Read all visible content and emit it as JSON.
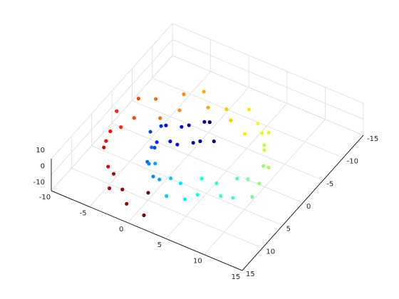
{
  "chart_data": {
    "type": "scatter3",
    "colormap": "jet",
    "grid": true,
    "xlim": [
      -10,
      15
    ],
    "ylim": [
      -15,
      15
    ],
    "zlim": [
      -10,
      10
    ],
    "xticks": [
      -10,
      -5,
      0,
      5,
      10,
      15
    ],
    "yticks": [
      -15,
      -10,
      -5,
      0,
      5,
      10,
      15
    ],
    "zticks": [
      -10,
      0,
      10
    ],
    "x": [
      1.7,
      0.5,
      -0.7,
      -1.8,
      -2.6,
      -3.0,
      -3.0,
      -2.5,
      -1.5,
      -0.1,
      1.7,
      3.6,
      5.5,
      7.3,
      8.6,
      9.4,
      9.6,
      9.0,
      7.8,
      6.0,
      3.7,
      1.1,
      -1.6,
      -4.1,
      -6.1,
      -7.5,
      -8.1,
      -7.8,
      -6.5,
      -4.4,
      -1.7,
      1.6,
      2.1,
      0.9,
      -0.3,
      -1.4,
      -2.2,
      -2.6,
      -2.6,
      -2.1,
      -1.1,
      0.3,
      2.1,
      4.0,
      5.9,
      7.7,
      9.0,
      9.8,
      10.0,
      9.4,
      8.2,
      6.4,
      4.1,
      1.5,
      -1.2,
      -3.7,
      -5.7,
      -7.1,
      -7.7,
      -7.4,
      -6.1,
      -4.0,
      -1.3,
      2.0
    ],
    "y": [
      -2.1,
      -2.0,
      -1.5,
      -0.7,
      0.6,
      2.1,
      3.7,
      5.4,
      6.9,
      8.0,
      8.6,
      8.7,
      8.1,
      6.8,
      5.2,
      3.0,
      0.6,
      -1.8,
      -4.1,
      -5.9,
      -7.0,
      -7.4,
      -6.9,
      -5.6,
      -3.5,
      -0.8,
      2.4,
      5.6,
      8.6,
      11.2,
      13.1,
      14.0,
      -2.4,
      -2.3,
      -1.8,
      -1.0,
      0.3,
      1.8,
      3.4,
      5.1,
      6.6,
      7.7,
      8.3,
      8.4,
      7.8,
      6.5,
      4.9,
      2.7,
      0.3,
      -2.1,
      -4.4,
      -6.2,
      -7.3,
      -7.7,
      -7.2,
      -5.9,
      -3.8,
      -1.1,
      2.1,
      5.3,
      8.3,
      10.9,
      12.8,
      13.7
    ],
    "z": [
      8,
      -6,
      3,
      -9,
      5,
      -2,
      9,
      -4,
      1,
      7,
      -8,
      4,
      -1,
      6,
      -5,
      2,
      -7,
      9,
      -3,
      5,
      -9,
      0,
      7,
      -6,
      3,
      -4,
      8,
      -1,
      6,
      -8,
      2,
      -5,
      -4,
      6,
      -8,
      2,
      -5,
      8,
      -1,
      5,
      -7,
      -3,
      3,
      -6,
      9,
      -2,
      7,
      -9,
      4,
      -5,
      8,
      -1,
      6,
      -7,
      -3,
      4,
      -9,
      8,
      -2,
      5,
      -6,
      1,
      -7,
      9
    ],
    "c": [
      4.8,
      5.1,
      5.4,
      5.7,
      6.0,
      6.3,
      6.6,
      6.9,
      7.2,
      7.5,
      7.8,
      8.1,
      8.4,
      8.7,
      9.0,
      9.3,
      9.6,
      9.9,
      10.2,
      10.5,
      10.8,
      11.1,
      11.4,
      11.7,
      12.0,
      12.3,
      12.6,
      12.9,
      13.2,
      13.5,
      13.8,
      14.1,
      4.8,
      5.1,
      5.4,
      5.7,
      6.0,
      6.3,
      6.6,
      6.9,
      7.2,
      7.5,
      7.8,
      8.1,
      8.4,
      8.7,
      9.0,
      9.3,
      9.6,
      9.9,
      10.2,
      10.5,
      10.8,
      11.1,
      11.4,
      11.7,
      12.0,
      12.3,
      12.6,
      12.9,
      13.2,
      13.5,
      13.8,
      14.1
    ]
  }
}
